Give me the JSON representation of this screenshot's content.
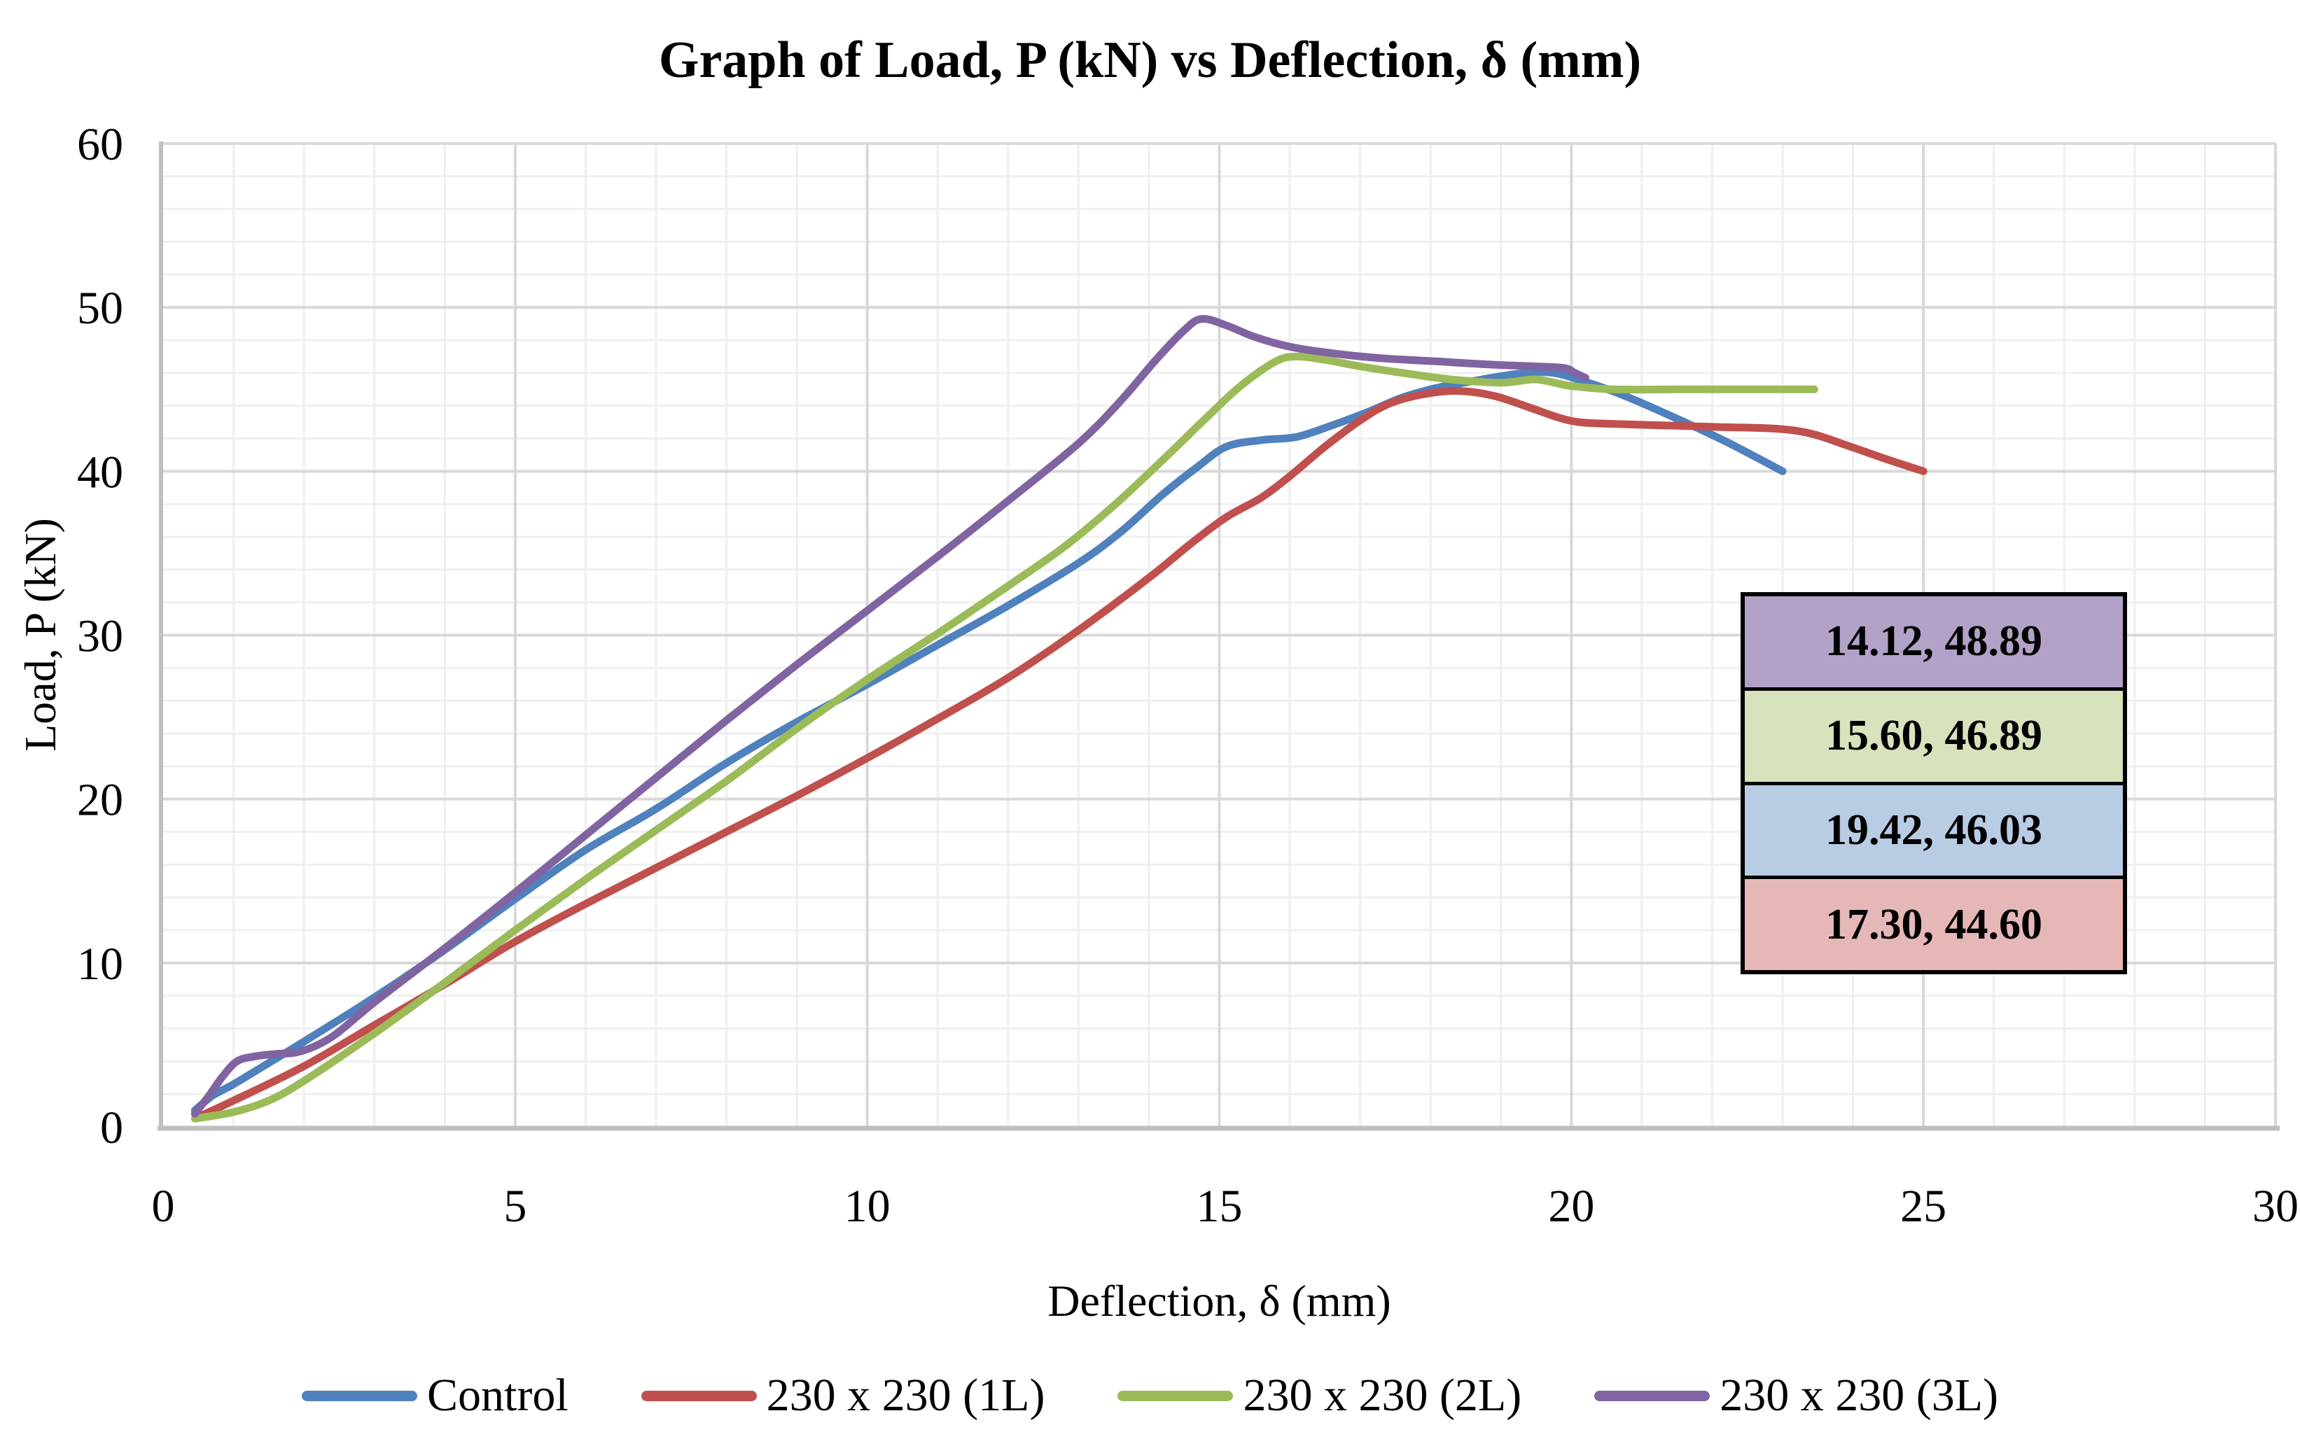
{
  "title": "Graph of Load, P (kN) vs Deflection, δ (mm)",
  "axes": {
    "x": {
      "label": "Deflection, δ (mm)",
      "min": 0,
      "max": 30,
      "major_ticks": [
        "0",
        "5",
        "10",
        "15",
        "20",
        "25",
        "30"
      ],
      "major_unit": 5,
      "minor_unit": 1
    },
    "y": {
      "label": "Load, P (kN)",
      "min": 0,
      "max": 60,
      "major_ticks": [
        "0",
        "10",
        "20",
        "30",
        "40",
        "50",
        "60"
      ],
      "major_unit": 10,
      "minor_unit": 2
    }
  },
  "legend": {
    "position": "bottom",
    "items": [
      {
        "label": "Control",
        "color": "#4F81BD"
      },
      {
        "label": "230 x 230 (1L)",
        "color": "#C0504D"
      },
      {
        "label": "230 x 230 (2L)",
        "color": "#9BBB59"
      },
      {
        "label": "230 x 230 (3L)",
        "color": "#8064A2"
      }
    ]
  },
  "annotations": [
    {
      "text": "14.12, 48.89",
      "fill": "#B2A2C7"
    },
    {
      "text": "15.60, 46.89",
      "fill": "#D7E3BC"
    },
    {
      "text": "19.42, 46.03",
      "fill": "#B8CCE4"
    },
    {
      "text": "17.30, 44.60",
      "fill": "#E5B8B7"
    }
  ],
  "colors": {
    "background": "#FFFFFF",
    "grid_minor": "#EFEFEF",
    "grid_major": "#D8D8D8",
    "axis_line": "#BFBFBF",
    "text": "#000000"
  },
  "chart_data": {
    "type": "line",
    "title": "Graph of Load, P (kN) vs Deflection, δ (mm)",
    "xlabel": "Deflection, δ (mm)",
    "ylabel": "Load, P (kN)",
    "xlim": [
      0,
      30
    ],
    "ylim": [
      0,
      60
    ],
    "grid": true,
    "legend_position": "bottom",
    "peak_labels": [
      {
        "series": "230 x 230 (3L)",
        "x": 14.12,
        "y": 48.89
      },
      {
        "series": "230 x 230 (2L)",
        "x": 15.6,
        "y": 46.89
      },
      {
        "series": "Control",
        "x": 19.42,
        "y": 46.03
      },
      {
        "series": "230 x 230 (1L)",
        "x": 17.3,
        "y": 44.6
      }
    ],
    "series": [
      {
        "name": "Control",
        "color": "#4F81BD",
        "points": [
          [
            0.45,
            1.0
          ],
          [
            0.7,
            1.9
          ],
          [
            1.0,
            2.6
          ],
          [
            1.5,
            3.9
          ],
          [
            2,
            5.2
          ],
          [
            3,
            7.9
          ],
          [
            4,
            10.8
          ],
          [
            5,
            13.9
          ],
          [
            6,
            16.9
          ],
          [
            7,
            19.4
          ],
          [
            8,
            22.2
          ],
          [
            9,
            24.7
          ],
          [
            10,
            27.0
          ],
          [
            11,
            29.4
          ],
          [
            12,
            31.8
          ],
          [
            13,
            34.4
          ],
          [
            13.6,
            36.3
          ],
          [
            14.2,
            38.6
          ],
          [
            14.7,
            40.3
          ],
          [
            15.1,
            41.5
          ],
          [
            15.6,
            41.9
          ],
          [
            16.1,
            42.1
          ],
          [
            16.6,
            42.8
          ],
          [
            17.1,
            43.6
          ],
          [
            17.6,
            44.5
          ],
          [
            18.1,
            45.1
          ],
          [
            18.6,
            45.5
          ],
          [
            19.0,
            45.8
          ],
          [
            19.42,
            46.03
          ],
          [
            19.75,
            46.0
          ],
          [
            20.1,
            45.6
          ],
          [
            20.7,
            44.7
          ],
          [
            21.4,
            43.4
          ],
          [
            22.2,
            41.8
          ],
          [
            23.0,
            40.0
          ]
        ]
      },
      {
        "name": "230 x 230 (1L)",
        "color": "#C0504D",
        "points": [
          [
            0.5,
            0.6
          ],
          [
            1.0,
            1.6
          ],
          [
            2,
            3.7
          ],
          [
            3,
            6.2
          ],
          [
            4,
            8.7
          ],
          [
            5,
            11.3
          ],
          [
            6,
            13.6
          ],
          [
            7,
            15.8
          ],
          [
            8,
            18.0
          ],
          [
            9,
            20.2
          ],
          [
            10,
            22.5
          ],
          [
            11,
            24.9
          ],
          [
            12,
            27.4
          ],
          [
            13,
            30.3
          ],
          [
            14,
            33.5
          ],
          [
            14.6,
            35.6
          ],
          [
            15.1,
            37.2
          ],
          [
            15.6,
            38.4
          ],
          [
            16.0,
            39.7
          ],
          [
            16.5,
            41.5
          ],
          [
            17.0,
            43.1
          ],
          [
            17.4,
            44.1
          ],
          [
            17.9,
            44.7
          ],
          [
            18.4,
            44.9
          ],
          [
            18.9,
            44.6
          ],
          [
            19.4,
            43.9
          ],
          [
            19.8,
            43.3
          ],
          [
            20.1,
            43.0
          ],
          [
            20.5,
            42.9
          ],
          [
            21.3,
            42.8
          ],
          [
            22.1,
            42.7
          ],
          [
            22.9,
            42.6
          ],
          [
            23.4,
            42.3
          ],
          [
            23.9,
            41.6
          ],
          [
            24.5,
            40.7
          ],
          [
            25.0,
            40.0
          ]
        ]
      },
      {
        "name": "230 x 230 (2L)",
        "color": "#9BBB59",
        "points": [
          [
            0.45,
            0.5
          ],
          [
            1.0,
            0.9
          ],
          [
            1.5,
            1.6
          ],
          [
            2,
            2.8
          ],
          [
            3,
            5.7
          ],
          [
            4,
            8.8
          ],
          [
            5,
            12.0
          ],
          [
            6,
            15.1
          ],
          [
            7,
            18.1
          ],
          [
            8,
            21.1
          ],
          [
            9,
            24.3
          ],
          [
            10,
            27.3
          ],
          [
            11,
            30.1
          ],
          [
            12,
            33.0
          ],
          [
            12.8,
            35.4
          ],
          [
            13.5,
            37.9
          ],
          [
            14.2,
            40.7
          ],
          [
            14.8,
            43.2
          ],
          [
            15.3,
            45.2
          ],
          [
            15.8,
            46.7
          ],
          [
            16.1,
            47.0
          ],
          [
            16.5,
            46.8
          ],
          [
            17.0,
            46.4
          ],
          [
            17.6,
            46.0
          ],
          [
            18.3,
            45.6
          ],
          [
            19.0,
            45.4
          ],
          [
            19.5,
            45.6
          ],
          [
            20.0,
            45.2
          ],
          [
            20.6,
            45.0
          ],
          [
            21.5,
            45.0
          ],
          [
            22.5,
            45.0
          ],
          [
            23.45,
            45.0
          ]
        ]
      },
      {
        "name": "230 x 230 (3L)",
        "color": "#8064A2",
        "points": [
          [
            0.45,
            0.8
          ],
          [
            0.65,
            1.9
          ],
          [
            0.85,
            3.1
          ],
          [
            1.05,
            4.0
          ],
          [
            1.3,
            4.3
          ],
          [
            1.6,
            4.45
          ],
          [
            1.95,
            4.6
          ],
          [
            2.4,
            5.5
          ],
          [
            3,
            7.6
          ],
          [
            4,
            10.9
          ],
          [
            5,
            14.3
          ],
          [
            6,
            17.8
          ],
          [
            7,
            21.3
          ],
          [
            8,
            24.8
          ],
          [
            9,
            28.2
          ],
          [
            10,
            31.5
          ],
          [
            11,
            34.8
          ],
          [
            12,
            38.2
          ],
          [
            13,
            41.7
          ],
          [
            13.6,
            44.3
          ],
          [
            14.1,
            46.8
          ],
          [
            14.5,
            48.6
          ],
          [
            14.75,
            49.3
          ],
          [
            15.1,
            48.9
          ],
          [
            15.5,
            48.2
          ],
          [
            16.0,
            47.6
          ],
          [
            16.6,
            47.2
          ],
          [
            17.3,
            46.9
          ],
          [
            18.1,
            46.7
          ],
          [
            18.9,
            46.5
          ],
          [
            19.5,
            46.4
          ],
          [
            19.9,
            46.3
          ],
          [
            20.05,
            46.0
          ],
          [
            20.2,
            45.7
          ]
        ]
      }
    ]
  }
}
